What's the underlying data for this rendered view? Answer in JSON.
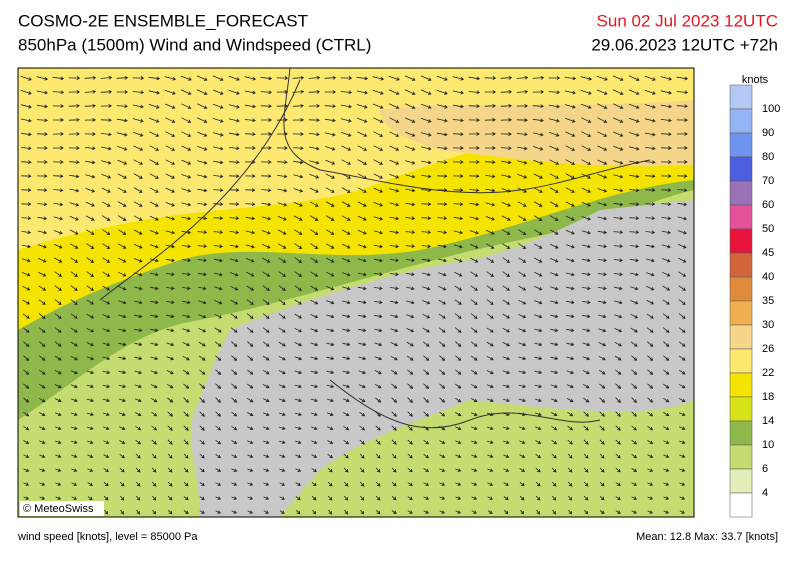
{
  "header": {
    "title": "COSMO-2E ENSEMBLE_FORECAST",
    "subtitle": "850hPa (1500m) Wind and Windspeed (CTRL)",
    "valid_time": "Sun 02 Jul 2023 12UTC",
    "run_time": "29.06.2023 12UTC +72h"
  },
  "legend": {
    "unit": "knots",
    "labels": [
      "100",
      "90",
      "80",
      "70",
      "60",
      "50",
      "45",
      "40",
      "35",
      "30",
      "26",
      "22",
      "18",
      "14",
      "10",
      "6",
      "4"
    ],
    "colors": [
      "#b3c8f5",
      "#93b5f5",
      "#6f94ee",
      "#4d5fe0",
      "#9a72b8",
      "#e5509a",
      "#e8143c",
      "#d4643a",
      "#e08a3c",
      "#f0b050",
      "#f5d58a",
      "#fde870",
      "#f5e400",
      "#d8e41a",
      "#8fb84a",
      "#c5dc70",
      "#e3efb8",
      "#ffffff"
    ]
  },
  "map": {
    "credit": "© MeteoSwiss"
  },
  "footer": {
    "left": "wind speed [knots], level = 85000 Pa",
    "right": "Mean:   12.8  Max:   33.7 [knots]"
  }
}
